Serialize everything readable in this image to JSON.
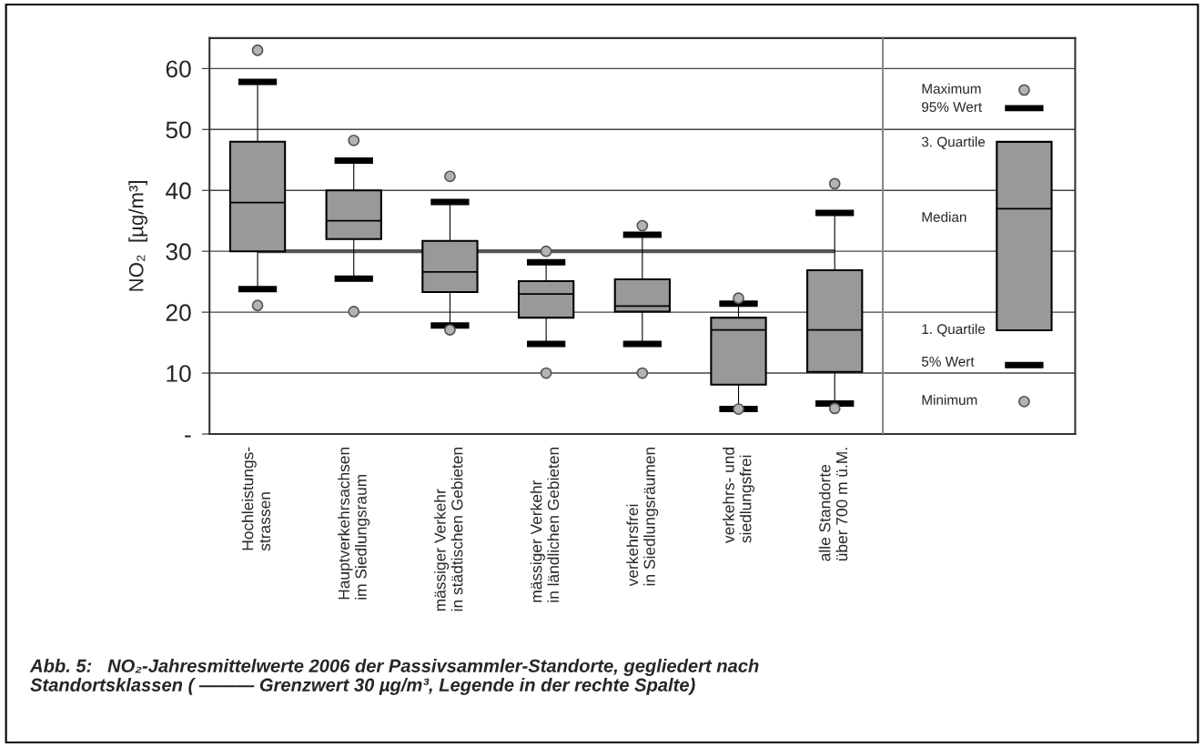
{
  "chart_data": {
    "type": "box",
    "title": "Abb. 5:   NO₂-Jahresmittelwerte 2006 der Passivsammler-Standorte, gegliedert nach\nStandortsklassen ( ——— Grenzwert 30 µg/m³, Legende in der rechte Spalte)",
    "ylabel": "NO₂  [µg/m³]",
    "categories": [
      "Hochleistungs-\nstrassen",
      "Hauptverkehrsachsen\nim Siedlungsraum",
      "mässiger Verkehr\nin städtischen Gebieten",
      "mässiger Verkehr\nin ländlichen Gebieten",
      "verkehrsfrei\nin Siedlungsräumen",
      "verkehrs- und\nsiedlungsfrei",
      "alle Standorte\nüber 700 m ü.M."
    ],
    "boxes": [
      {
        "low": 23.8,
        "q1": 30,
        "median": 38,
        "q3": 48,
        "high": 57.8,
        "outliers": [
          21.1,
          63
        ]
      },
      {
        "low": 25.5,
        "q1": 32,
        "median": 35,
        "q3": 40,
        "high": 44.9,
        "outliers": [
          20.1,
          48.2
        ]
      },
      {
        "low": 17.8,
        "q1": 23.3,
        "median": 26.6,
        "q3": 31.7,
        "high": 38.1,
        "outliers": [
          17.1,
          42.3
        ]
      },
      {
        "low": 14.8,
        "q1": 19.1,
        "median": 23,
        "q3": 25.1,
        "high": 28.2,
        "outliers": [
          10,
          30
        ]
      },
      {
        "low": 14.8,
        "q1": 20.1,
        "median": 21,
        "q3": 25.4,
        "high": 32.7,
        "outliers": [
          10,
          34.2
        ]
      },
      {
        "low": 4.1,
        "q1": 8.1,
        "median": 17.1,
        "q3": 19.1,
        "high": 21.4,
        "outliers": [
          4.1,
          22.3
        ]
      },
      {
        "low": 5,
        "q1": 10.2,
        "median": 17.1,
        "q3": 26.9,
        "high": 36.3,
        "outliers": [
          4.2,
          41.1
        ]
      }
    ],
    "color": "#999999",
    "ylim": [
      0,
      65
    ],
    "yticks": [
      {
        "value": 0,
        "label": "-"
      },
      10,
      20,
      30,
      40,
      50,
      60
    ],
    "grid": "y",
    "ref_lines": [
      {
        "axis": "y",
        "value": 30,
        "color": "#555555"
      }
    ],
    "annotations": [
      "Maximum",
      "95% Wert",
      "3. Quartile",
      "Median",
      "1. Quartile",
      "5% Wert",
      "Minimum"
    ]
  }
}
